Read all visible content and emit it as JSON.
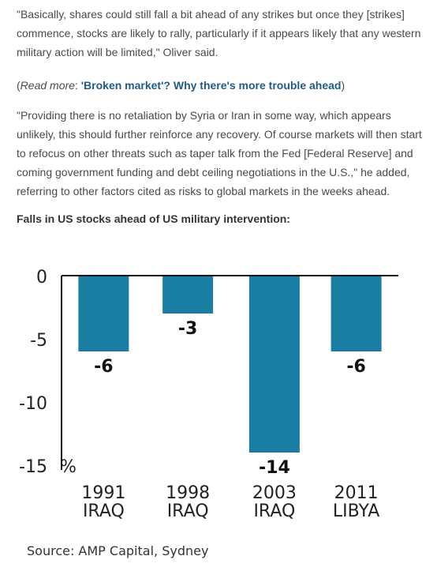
{
  "article": {
    "paragraph1": "\"Basically, shares could still fall a bit ahead of any strikes but once they [strikes] commence, stocks are likely to rally, particularly if it appears likely that any western military action will be limited,\" Oliver said.",
    "readmore_open": "(",
    "readmore_label": "Read more",
    "readmore_sep": ": ",
    "readmore_link": "'Broken market'? Why there's more trouble ahead",
    "readmore_close": ")",
    "paragraph2": "\"Providing there is no retaliation by Syria or Iran in some way, which appears unlikely, this should further reinforce any recovery. Of course markets will then start to refocus on other threats such as taper talk from the Fed [Federal Reserve] and coming government funding and debt ceiling negotiations in the U.S.,\" he added, referring to other factors cited as risks to global markets in the weeks ahead."
  },
  "chart_heading": "Falls in US stocks ahead of US military intervention:",
  "chart_data": {
    "type": "bar",
    "title": "",
    "categories": [
      [
        "1991",
        "IRAQ"
      ],
      [
        "1998",
        "IRAQ"
      ],
      [
        "2003",
        "IRAQ"
      ],
      [
        "2011",
        "LIBYA"
      ]
    ],
    "values": [
      -6,
      -3,
      -14,
      -6
    ],
    "data_labels": [
      "-6",
      "-3",
      "-14",
      "-6"
    ],
    "yticks": [
      0,
      -5,
      -10,
      -15
    ],
    "ytick_labels": [
      "0",
      "-5",
      "-10",
      "-15"
    ],
    "yunit": "%",
    "ylim": [
      -15,
      0
    ],
    "bar_color": "#1a7ea3"
  },
  "source": "Source: AMP Capital, Sydney"
}
